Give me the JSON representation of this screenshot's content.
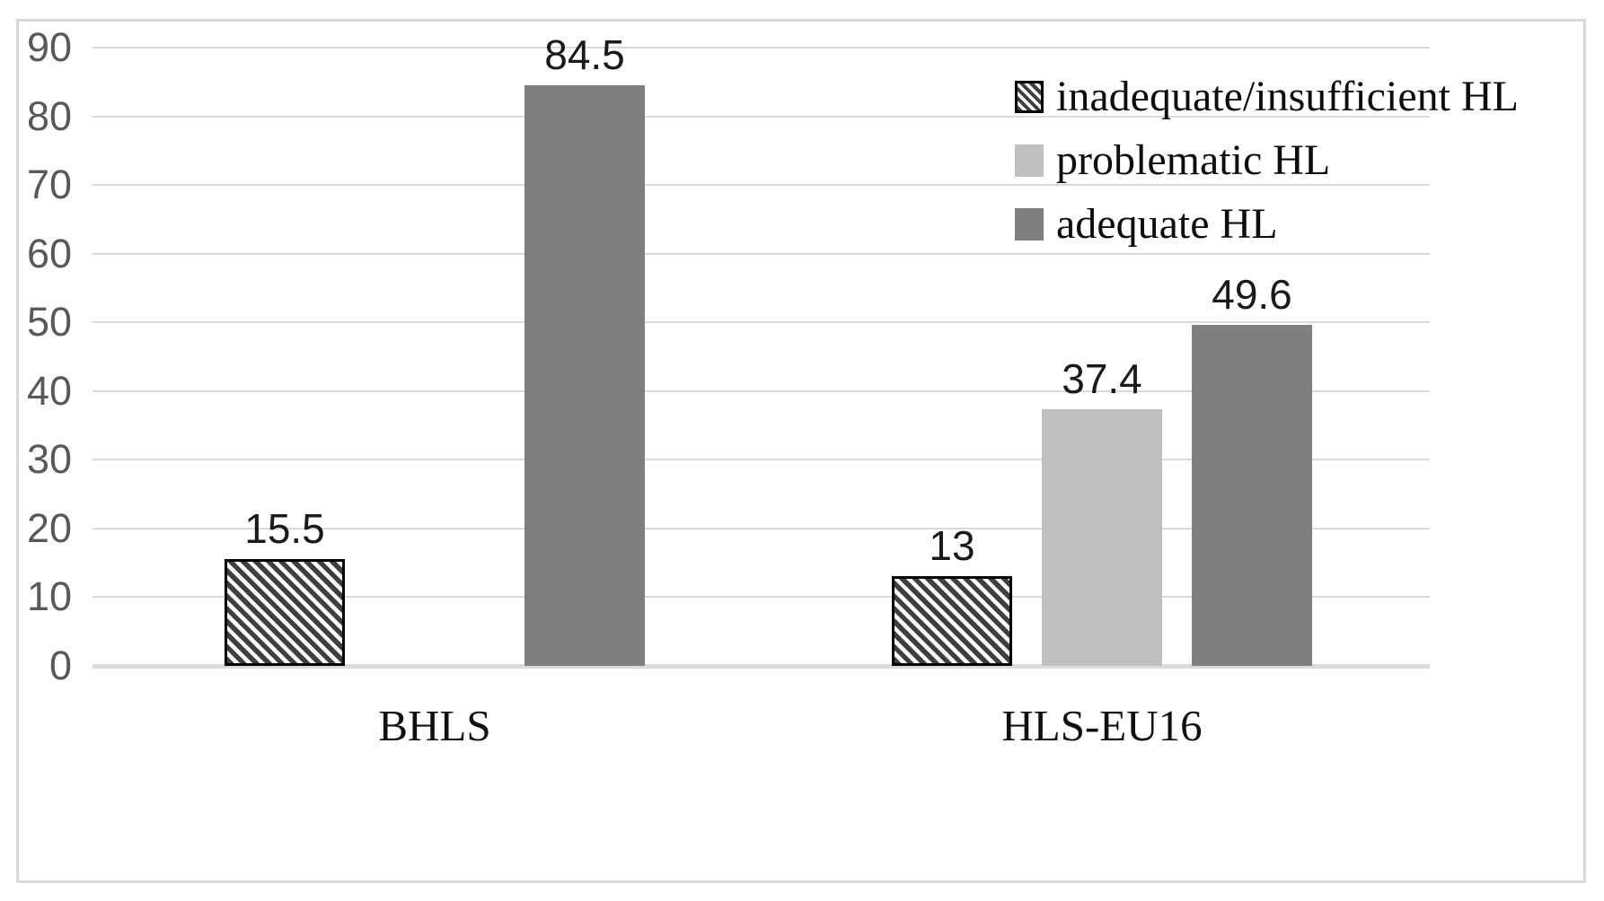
{
  "chart_data": {
    "type": "bar",
    "title": "",
    "xlabel": "",
    "ylabel": "",
    "categories": [
      "BHLS",
      "HLS-EU16"
    ],
    "series": [
      {
        "name": "inadequate/insufficient HL",
        "values": [
          15.5,
          13
        ],
        "labels": [
          "15.5",
          "13"
        ],
        "fill": "pattern",
        "pattern": "diagonal-hatch",
        "pattern_color": "#3f3f3f",
        "pattern_bg": "#ffffff",
        "border_color": "#000000"
      },
      {
        "name": "problematic HL",
        "values": [
          null,
          37.4
        ],
        "labels": [
          null,
          "37.4"
        ],
        "fill": "solid",
        "color": "#bfbfbf"
      },
      {
        "name": "adequate HL",
        "values": [
          84.5,
          49.6
        ],
        "labels": [
          "84.5",
          "49.6"
        ],
        "fill": "solid",
        "color": "#7f7f7f"
      }
    ],
    "ylim": [
      0,
      90
    ],
    "yticks": [
      0,
      10,
      20,
      30,
      40,
      50,
      60,
      70,
      80,
      90
    ],
    "grid": true,
    "legend_position": "top-right",
    "colors": {
      "gridline": "#d9d9d9",
      "axis_line": "#d9d9d9",
      "tick_label": "#595959",
      "value_label": "#1a1a1a",
      "category_label": "#0f0f0f",
      "legend_label": "#0d0d0d",
      "frame": "#d9d9d9"
    }
  }
}
